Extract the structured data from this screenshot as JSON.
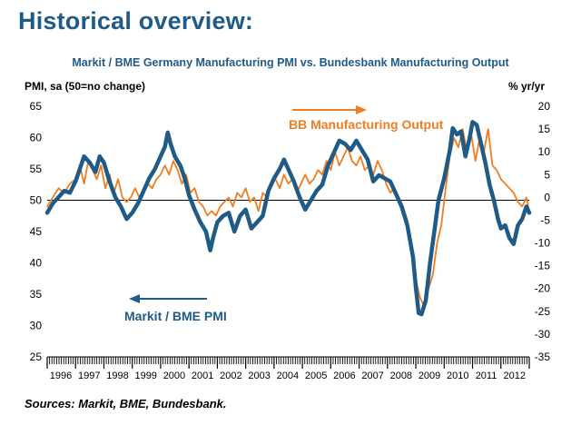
{
  "header": {
    "title": "Historical overview:"
  },
  "footer": {
    "sources": "Sources: Markit, BME, Bundesbank."
  },
  "colors": {
    "pmi": "#1f5b86",
    "output": "#ef7d22",
    "title": "#1f5b86"
  },
  "chart_data": {
    "type": "line",
    "title": "Markit / BME Germany Manufacturing PMI vs. Bundesbank Manufacturing Output",
    "ylabel": "PMI, sa (50=no change)",
    "y2label": "% yr/yr",
    "ylim": [
      25,
      65
    ],
    "y2lim": [
      -35,
      20
    ],
    "yticks": [
      25,
      30,
      35,
      40,
      45,
      50,
      55,
      60,
      65
    ],
    "y2ticks": [
      20,
      15,
      10,
      5,
      0,
      -5,
      -10,
      -15,
      -20,
      -25,
      -30,
      -35
    ],
    "xlim": [
      1996,
      2013
    ],
    "reference_line": 50,
    "grid": false,
    "categories": [
      "1996",
      "1997",
      "1998",
      "1999",
      "2000",
      "2001",
      "2002",
      "2003",
      "2004",
      "2005",
      "2006",
      "2007",
      "2008",
      "2009",
      "2010",
      "2011",
      "2012"
    ],
    "annotations": [
      "BB Manufacturing Output",
      "Markit / BME PMI"
    ],
    "series": [
      {
        "name": "Markit / BME PMI",
        "axis": "left",
        "x": [
          1996.0,
          1996.2,
          1996.4,
          1996.6,
          1996.8,
          1997.0,
          1997.15,
          1997.3,
          1997.5,
          1997.7,
          1997.85,
          1998.0,
          1998.2,
          1998.4,
          1998.6,
          1998.8,
          1999.0,
          1999.2,
          1999.4,
          1999.6,
          1999.8,
          2000.0,
          2000.15,
          2000.25,
          2000.35,
          2000.5,
          2000.7,
          2000.85,
          2001.0,
          2001.2,
          2001.4,
          2001.6,
          2001.75,
          2001.85,
          2002.0,
          2002.2,
          2002.4,
          2002.6,
          2002.8,
          2003.0,
          2003.2,
          2003.4,
          2003.6,
          2003.8,
          2004.0,
          2004.2,
          2004.35,
          2004.5,
          2004.7,
          2004.9,
          2005.1,
          2005.3,
          2005.5,
          2005.7,
          2005.9,
          2006.1,
          2006.3,
          2006.5,
          2006.7,
          2006.9,
          2007.1,
          2007.3,
          2007.5,
          2007.7,
          2007.9,
          2008.1,
          2008.3,
          2008.5,
          2008.7,
          2008.9,
          2009.0,
          2009.1,
          2009.2,
          2009.35,
          2009.5,
          2009.65,
          2009.8,
          2010.0,
          2010.2,
          2010.3,
          2010.45,
          2010.6,
          2010.75,
          2010.9,
          2011.0,
          2011.15,
          2011.3,
          2011.45,
          2011.6,
          2011.75,
          2011.9,
          2012.0,
          2012.15,
          2012.3,
          2012.45,
          2012.6,
          2012.75,
          2012.9,
          2013.0
        ],
        "values": [
          48,
          49.5,
          50.5,
          51.5,
          51.2,
          53,
          55,
          57,
          56,
          54.5,
          57,
          56,
          53,
          50.5,
          49,
          47,
          48,
          49.5,
          51.5,
          53.5,
          55,
          57,
          58.5,
          60.8,
          59,
          57,
          55.5,
          53.5,
          50.8,
          48.5,
          46.5,
          45,
          42,
          44,
          46.5,
          47.5,
          48,
          45,
          47.5,
          48.5,
          45.5,
          46.5,
          47.5,
          51.5,
          53.5,
          55,
          56.5,
          55,
          53,
          50.5,
          48.5,
          50,
          51.5,
          52.5,
          55.5,
          57.5,
          59.5,
          59,
          58,
          59.5,
          58,
          56.5,
          53,
          54,
          53.5,
          53,
          51,
          49,
          46,
          41,
          36,
          32,
          31.8,
          34,
          40,
          45,
          50,
          53.5,
          58,
          61.5,
          60.5,
          61,
          57,
          60,
          62.5,
          62,
          59,
          56,
          52.5,
          50,
          47,
          45.5,
          46,
          44,
          43,
          46,
          47,
          49,
          48
        ]
      },
      {
        "name": "BB Manufacturing Output",
        "axis": "right",
        "x": [
          1996.0,
          1996.2,
          1996.4,
          1996.6,
          1996.8,
          1997.0,
          1997.15,
          1997.3,
          1997.45,
          1997.6,
          1997.75,
          1997.9,
          1998.05,
          1998.2,
          1998.35,
          1998.5,
          1998.65,
          1998.8,
          1998.95,
          1999.1,
          1999.25,
          1999.4,
          1999.55,
          1999.7,
          1999.85,
          2000.0,
          2000.15,
          2000.3,
          2000.45,
          2000.6,
          2000.75,
          2000.9,
          2001.05,
          2001.2,
          2001.35,
          2001.5,
          2001.65,
          2001.8,
          2001.95,
          2002.1,
          2002.25,
          2002.4,
          2002.55,
          2002.7,
          2002.85,
          2003.0,
          2003.15,
          2003.3,
          2003.45,
          2003.6,
          2003.75,
          2003.9,
          2004.05,
          2004.2,
          2004.35,
          2004.5,
          2004.65,
          2004.8,
          2004.95,
          2005.1,
          2005.25,
          2005.4,
          2005.55,
          2005.7,
          2005.85,
          2006.0,
          2006.15,
          2006.3,
          2006.45,
          2006.6,
          2006.75,
          2006.9,
          2007.05,
          2007.2,
          2007.35,
          2007.5,
          2007.65,
          2007.8,
          2007.95,
          2008.1,
          2008.25,
          2008.4,
          2008.55,
          2008.7,
          2008.85,
          2009.0,
          2009.15,
          2009.3,
          2009.45,
          2009.6,
          2009.75,
          2009.9,
          2010.05,
          2010.2,
          2010.35,
          2010.5,
          2010.65,
          2010.8,
          2010.95,
          2011.1,
          2011.25,
          2011.4,
          2011.55,
          2011.7,
          2011.85,
          2012.0,
          2012.15,
          2012.3,
          2012.45,
          2012.6,
          2012.75,
          2012.9,
          2013.0
        ],
        "values": [
          -2,
          0,
          2,
          1,
          3,
          4,
          7,
          3,
          8,
          6,
          4,
          7,
          2,
          5,
          1,
          4,
          0,
          -1,
          0,
          2,
          0,
          1,
          3,
          2,
          4,
          5,
          7,
          5,
          8,
          6,
          3,
          5,
          1,
          2,
          -1,
          -2,
          -4,
          -3,
          -4,
          -2,
          -1,
          0,
          -2,
          1,
          0,
          2,
          -1,
          0,
          -3,
          1,
          0,
          3,
          4,
          2,
          5,
          3,
          4,
          1,
          3,
          5,
          3,
          4,
          6,
          5,
          8,
          6,
          10,
          7,
          9,
          11,
          8,
          7,
          9,
          6,
          7,
          5,
          8,
          6,
          3,
          1,
          2,
          0,
          -2,
          -5,
          -12,
          -18,
          -22,
          -24,
          -20,
          -17,
          -10,
          -6,
          2,
          9,
          13,
          11,
          15,
          10,
          14,
          8,
          13,
          10,
          15,
          7,
          6,
          4,
          3,
          2,
          1,
          -1,
          -2,
          0,
          -3
        ]
      }
    ]
  }
}
